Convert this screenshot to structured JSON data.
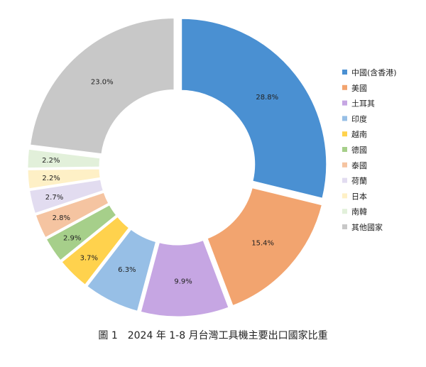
{
  "caption": "圖 1　2024 年 1-8 月台灣工具機主要出口國家比重",
  "chart_data": {
    "type": "pie",
    "donut": true,
    "legend_position": "right",
    "slices": [
      {
        "label": "中國(含香港)",
        "value": 28.8,
        "display": "28.8%",
        "color": "#4A90D2"
      },
      {
        "label": "美國",
        "value": 15.4,
        "display": "15.4%",
        "color": "#F2A46F"
      },
      {
        "label": "土耳其",
        "value": 9.9,
        "display": "9.9%",
        "color": "#C6A6E3"
      },
      {
        "label": "印度",
        "value": 6.3,
        "display": "6.3%",
        "color": "#97BFE6"
      },
      {
        "label": "越南",
        "value": 3.7,
        "display": "3.7%",
        "color": "#FFD24D"
      },
      {
        "label": "德國",
        "value": 2.9,
        "display": "2.9%",
        "color": "#A6CF8A"
      },
      {
        "label": "泰國",
        "value": 2.8,
        "display": "2.8%",
        "color": "#F5C4A1"
      },
      {
        "label": "荷蘭",
        "value": 2.7,
        "display": "2.7%",
        "color": "#E2DCF0"
      },
      {
        "label": "日本",
        "value": 2.2,
        "display": "2.2%",
        "color": "#FEF0C6"
      },
      {
        "label": "南韓",
        "value": 2.2,
        "display": "2.2%",
        "color": "#E2F0DA"
      },
      {
        "label": "其他國家",
        "value": 23.0,
        "display": "23.0%",
        "color": "#C8C8C8"
      }
    ]
  }
}
